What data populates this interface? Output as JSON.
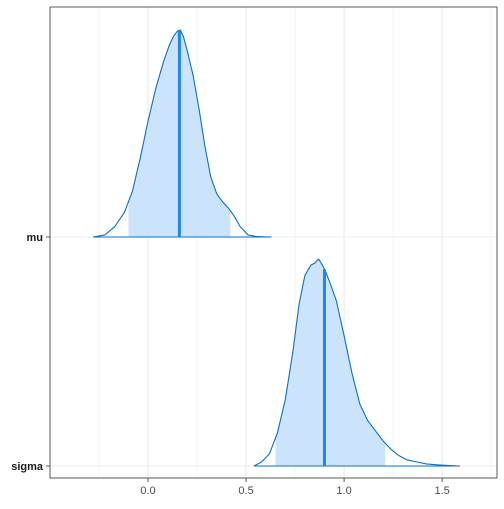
{
  "chart_data": {
    "type": "area",
    "subtype": "posterior-density-ridges",
    "title": "",
    "xlabel": "",
    "ylabel": "",
    "xlim": [
      -0.5,
      1.78
    ],
    "x_ticks": [
      0.0,
      0.5,
      1.0,
      1.5
    ],
    "x_tick_labels": [
      "0.0",
      "0.5",
      "1.0",
      "1.5"
    ],
    "grid": true,
    "legend": "none",
    "colors": {
      "outline": "#0b6fc1",
      "fill": "#cce4fb",
      "point_line": "#1e88e5",
      "grid": "#ebebeb",
      "panel_border": "#333333",
      "tick_text": "#4d4d4d",
      "label_text": "#1a1a1a"
    },
    "series": [
      {
        "name": "mu",
        "median": 0.16,
        "interval_inner": [
          -0.1,
          0.42
        ],
        "range": [
          -0.28,
          0.63
        ],
        "density": {
          "x": [
            -0.28,
            -0.22,
            -0.17,
            -0.12,
            -0.08,
            -0.04,
            0.0,
            0.04,
            0.08,
            0.11,
            0.13,
            0.15,
            0.165,
            0.18,
            0.2,
            0.23,
            0.26,
            0.29,
            0.32,
            0.35,
            0.38,
            0.41,
            0.44,
            0.47,
            0.51,
            0.55,
            0.59,
            0.63
          ],
          "y": [
            0.0,
            0.01,
            0.05,
            0.12,
            0.22,
            0.38,
            0.56,
            0.72,
            0.85,
            0.93,
            0.97,
            0.995,
            1.0,
            0.97,
            0.9,
            0.78,
            0.62,
            0.44,
            0.29,
            0.21,
            0.17,
            0.14,
            0.1,
            0.05,
            0.01,
            0.003,
            0.001,
            0.0
          ]
        }
      },
      {
        "name": "sigma",
        "median": 0.9,
        "interval_inner": [
          0.65,
          1.21
        ],
        "range": [
          0.54,
          1.59
        ],
        "density": {
          "x": [
            0.54,
            0.58,
            0.62,
            0.66,
            0.7,
            0.74,
            0.77,
            0.8,
            0.83,
            0.85,
            0.87,
            0.89,
            0.91,
            0.93,
            0.96,
            1.0,
            1.04,
            1.08,
            1.12,
            1.16,
            1.2,
            1.24,
            1.28,
            1.32,
            1.37,
            1.42,
            1.48,
            1.54,
            1.59
          ],
          "y": [
            0.0,
            0.02,
            0.06,
            0.16,
            0.32,
            0.56,
            0.78,
            0.92,
            0.97,
            0.98,
            1.0,
            0.97,
            0.93,
            0.88,
            0.8,
            0.63,
            0.45,
            0.3,
            0.22,
            0.17,
            0.12,
            0.08,
            0.05,
            0.03,
            0.02,
            0.01,
            0.005,
            0.002,
            0.0
          ]
        }
      }
    ]
  }
}
